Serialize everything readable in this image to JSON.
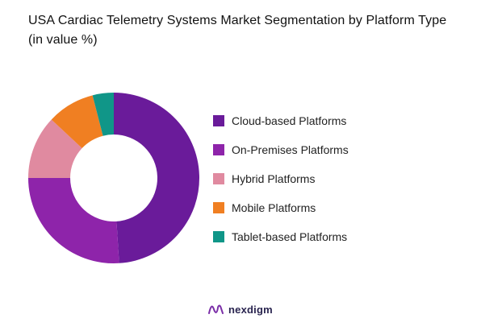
{
  "chart_data": {
    "type": "pie",
    "title": "USA Cardiac Telemetry Systems Market Segmentation by Platform Type (in value %)",
    "categories": [
      "Cloud-based Platforms",
      "On-Premises Platforms",
      "Hybrid Platforms",
      "Mobile Platforms",
      "Tablet-based Platforms"
    ],
    "values": [
      49,
      26,
      12,
      9,
      4
    ],
    "colors": [
      "#6a1b9a",
      "#8e24aa",
      "#e08aa0",
      "#f07f22",
      "#109688"
    ],
    "donut": true,
    "legend_position": "right"
  },
  "legend": {
    "items": [
      {
        "label": "Cloud-based Platforms",
        "color": "#6a1b9a"
      },
      {
        "label": "On-Premises Platforms",
        "color": "#8e24aa"
      },
      {
        "label": "Hybrid Platforms",
        "color": "#e08aa0"
      },
      {
        "label": "Mobile Platforms",
        "color": "#f07f22"
      },
      {
        "label": "Tablet-based Platforms",
        "color": "#109688"
      }
    ]
  },
  "brand": {
    "name": "nexdigm",
    "icon": "nexdigm-logo-icon"
  }
}
